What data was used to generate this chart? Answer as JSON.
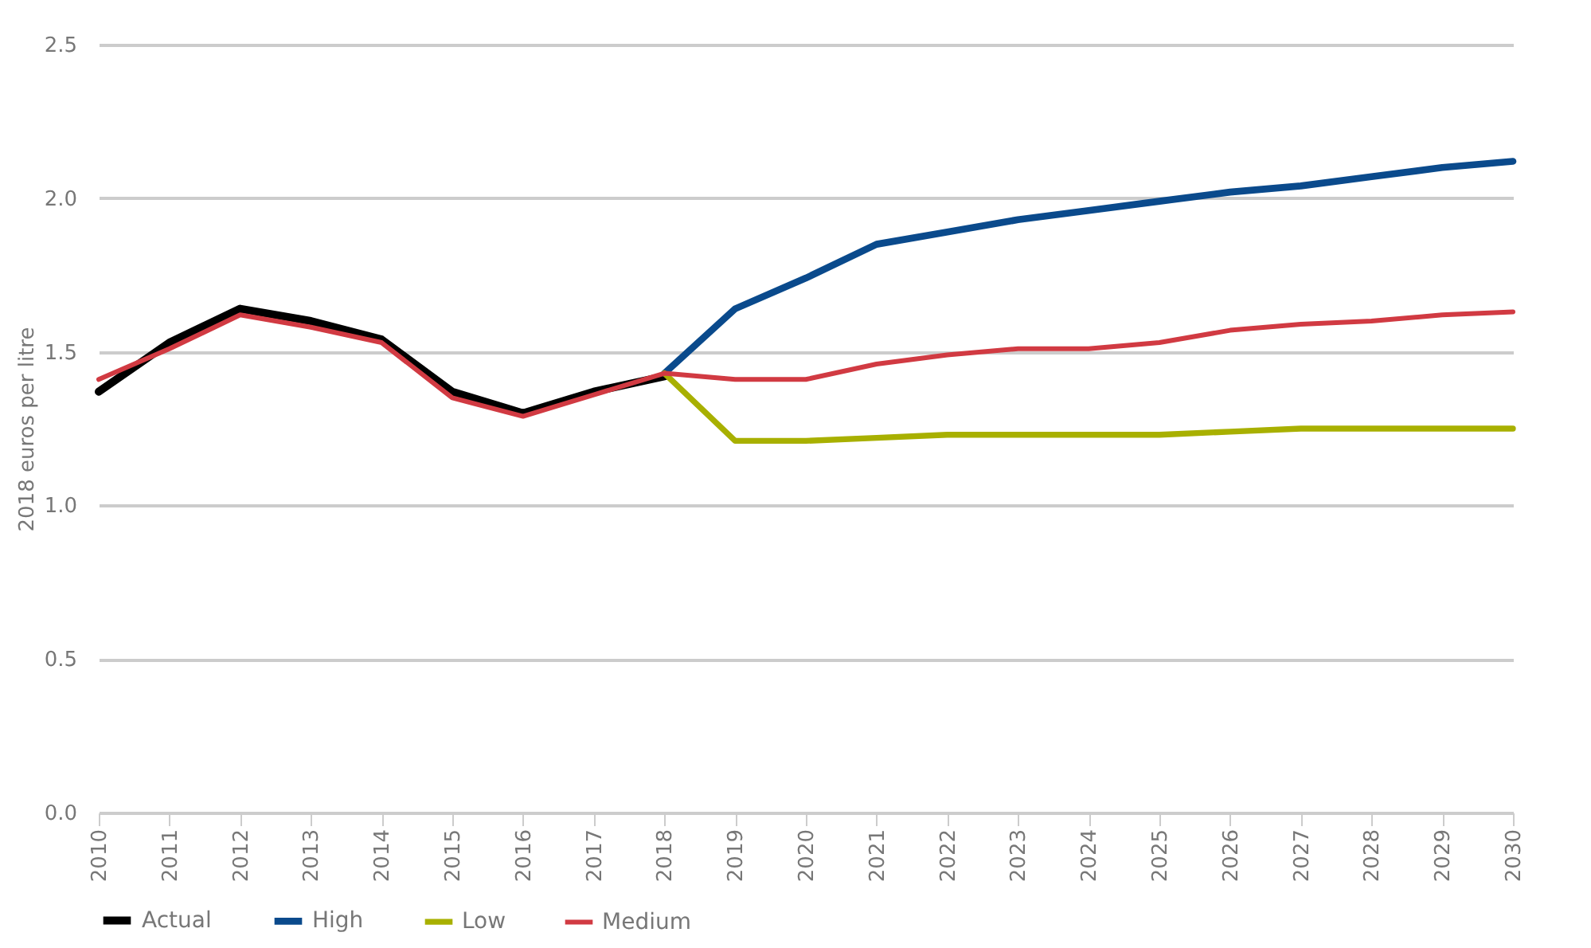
{
  "chart_data": {
    "type": "line",
    "ylabel": "2018 euros per litre",
    "categories": [
      "2010",
      "2011",
      "2012",
      "2013",
      "2014",
      "2015",
      "2016",
      "2017",
      "2018",
      "2019",
      "2020",
      "2021",
      "2022",
      "2023",
      "2024",
      "2025",
      "2026",
      "2027",
      "2028",
      "2029",
      "2030"
    ],
    "series": [
      {
        "name": "Actual",
        "color": "#000000",
        "values": [
          1.37,
          1.53,
          1.64,
          1.6,
          1.54,
          1.37,
          1.3,
          1.37,
          1.42,
          null,
          null,
          null,
          null,
          null,
          null,
          null,
          null,
          null,
          null,
          null,
          null
        ]
      },
      {
        "name": "High",
        "color": "#0a4a8c",
        "values": [
          null,
          null,
          null,
          null,
          null,
          null,
          null,
          null,
          1.43,
          1.64,
          1.74,
          1.85,
          1.89,
          1.93,
          1.96,
          1.99,
          2.02,
          2.04,
          2.07,
          2.1,
          2.12
        ]
      },
      {
        "name": "Low",
        "color": "#a8b000",
        "values": [
          null,
          null,
          null,
          null,
          null,
          null,
          null,
          null,
          1.43,
          1.21,
          1.21,
          1.22,
          1.23,
          1.23,
          1.23,
          1.23,
          1.24,
          1.25,
          1.25,
          1.25,
          1.25
        ]
      },
      {
        "name": "Medium",
        "color": "#d13a42",
        "values": [
          1.41,
          1.51,
          1.62,
          1.58,
          1.53,
          1.35,
          1.29,
          1.36,
          1.43,
          1.41,
          1.41,
          1.46,
          1.49,
          1.51,
          1.51,
          1.53,
          1.57,
          1.59,
          1.6,
          1.62,
          1.63
        ]
      }
    ],
    "ylim": [
      0,
      2.5
    ],
    "yticks": [
      {
        "value": 0,
        "label": "0.0"
      },
      {
        "value": 0.5,
        "label": "0.5"
      },
      {
        "value": 1,
        "label": "1.0"
      },
      {
        "value": 1.5,
        "label": "1.5"
      },
      {
        "value": 2,
        "label": "2.0"
      },
      {
        "value": 2.5,
        "label": "2.5"
      }
    ],
    "grid": "y",
    "legend": "bottom",
    "marker": "none",
    "line_style": "solid"
  }
}
